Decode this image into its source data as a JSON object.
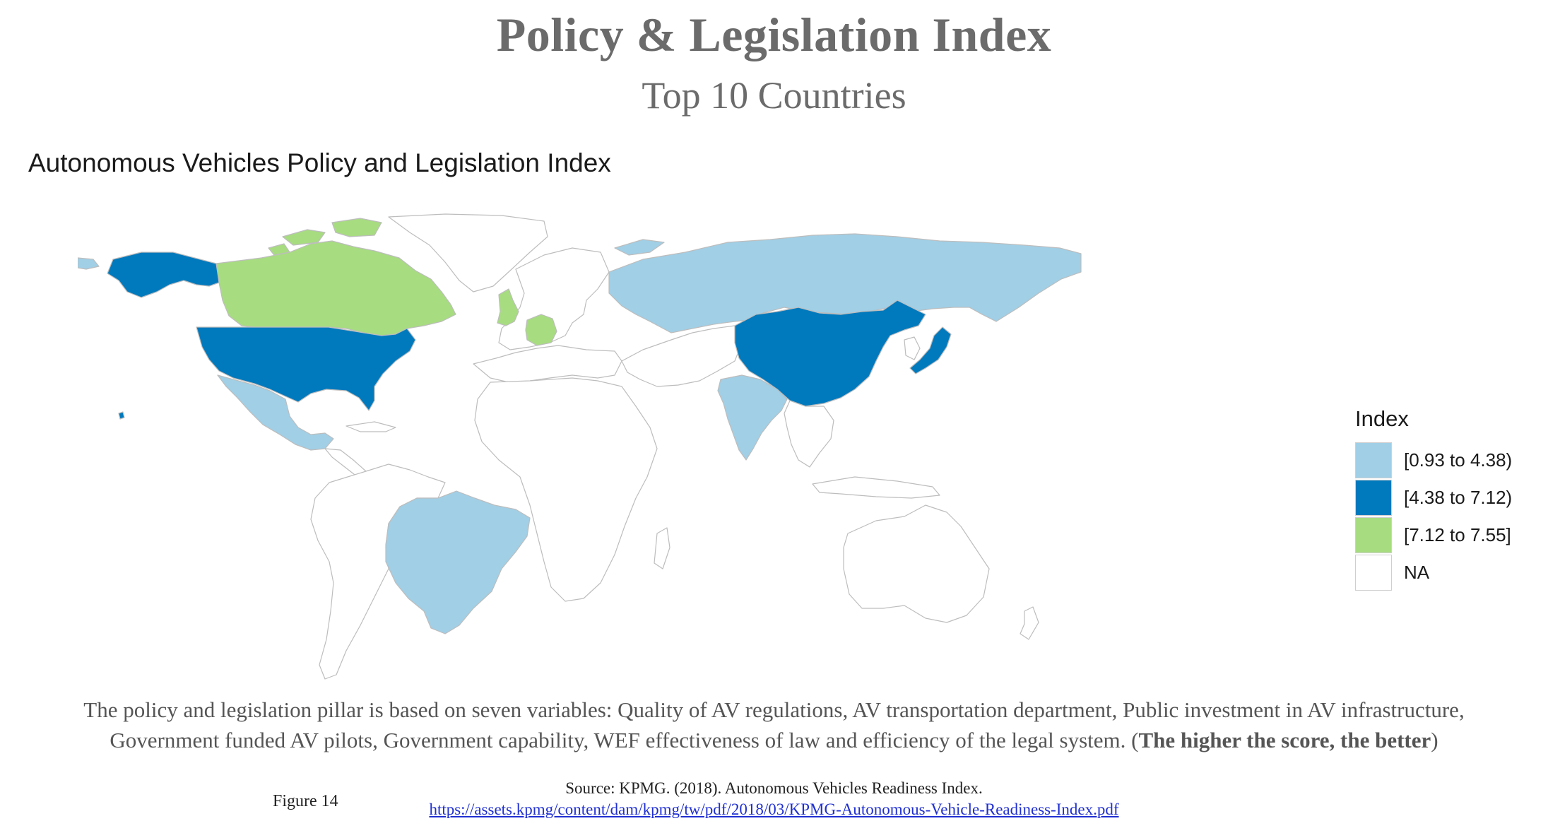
{
  "header": {
    "title": "Policy & Legislation Index",
    "subtitle": "Top 10 Countries"
  },
  "map": {
    "title": "Autonomous Vehicles Policy and Legislation Index",
    "legend": {
      "title": "Index",
      "items": [
        {
          "label": "[0.93 to 4.38)",
          "color": "#a0cfe6"
        },
        {
          "label": "[4.38 to 7.12)",
          "color": "#0079bd"
        },
        {
          "label": "[7.12 to 7.55]",
          "color": "#a7dc80"
        },
        {
          "label": "NA",
          "color": "#ffffff"
        }
      ]
    },
    "regions": {
      "canada": {
        "class": "[7.12 to 7.55]"
      },
      "united_kingdom": {
        "class": "[7.12 to 7.55]"
      },
      "germany": {
        "class": "[7.12 to 7.55]"
      },
      "united_states": {
        "class": "[4.38 to 7.12)"
      },
      "china": {
        "class": "[4.38 to 7.12)"
      },
      "japan": {
        "class": "[4.38 to 7.12)"
      },
      "russia": {
        "class": "[0.93 to 4.38)"
      },
      "mexico": {
        "class": "[0.93 to 4.38)"
      },
      "brazil": {
        "class": "[0.93 to 4.38)"
      },
      "india": {
        "class": "[0.93 to 4.38)"
      }
    }
  },
  "description": {
    "line1": "The policy and legislation pillar is based on seven variables:  Quality of AV regulations, AV transportation department, Public investment in AV infrastructure,",
    "line2_prefix": "Government funded AV pilots, Government capability, WEF effectiveness of law and efficiency of the legal system. (",
    "line2_bold": "The higher the score, the better",
    "line2_suffix": ")"
  },
  "footer": {
    "figure_label": "Figure 14",
    "source": "Source: KPMG. (2018). Autonomous Vehicles Readiness Index.",
    "link": "https://assets.kpmg/content/dam/kpmg/tw/pdf/2018/03/KPMG-Autonomous-Vehicle-Readiness-Index.pdf"
  }
}
